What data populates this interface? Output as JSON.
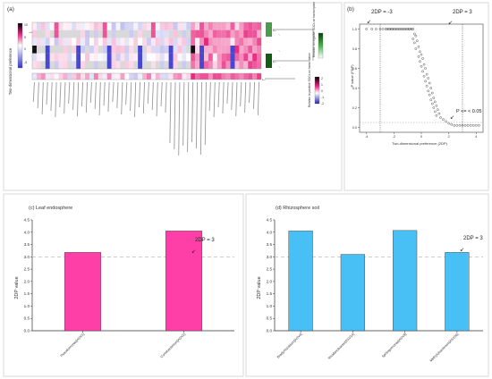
{
  "colors": {
    "pink_bar": "#ff3fa8",
    "blue_bar": "#49c0f5",
    "refline": "#b0b0b0",
    "scatter": "#555555",
    "heat_pos": "#e8287f",
    "heat_neg": "#3333cc",
    "green": "#3a8a3a"
  },
  "panel_a": {
    "label": "(a)",
    "y_axis_label": "Two-dimensional preference",
    "colorbar_ticks": [
      "10",
      "5",
      "0",
      "-5"
    ],
    "right_legend_label": "Relative to negative SOCs on transcription",
    "bottom_legend_label": "Relative to positive SOCs on transcription",
    "bottom_ticks": [
      "2",
      "1",
      "0",
      "-1",
      "-2"
    ]
  },
  "panel_b": {
    "label": "(b)",
    "ylabel": "P value (FDP)",
    "xlabel": "Two-dimensional preference (2DP)",
    "annotations": [
      "2DP = -3",
      "2DP = 3",
      "P <= < 0.05"
    ]
  },
  "chart_data": [
    {
      "type": "scatter",
      "panel": "b",
      "xlabel": "Two-dimensional preference (2DP)",
      "ylabel": "P value (FDP)",
      "xlim": [
        -4.5,
        4.5
      ],
      "ylim": [
        -0.05,
        1.05
      ],
      "xticks": [
        "-4",
        "-2",
        "0",
        "2",
        "4"
      ],
      "yticks": [
        "0.0",
        "0.2",
        "0.4",
        "0.6",
        "0.8",
        "1.0"
      ],
      "reference_x": [
        -3,
        3
      ],
      "points": [
        [
          -4.0,
          1.0
        ],
        [
          -3.6,
          1.0
        ],
        [
          -3.3,
          1.0
        ],
        [
          -3.0,
          1.0
        ],
        [
          -2.8,
          1.0
        ],
        [
          -2.6,
          1.0
        ],
        [
          -2.5,
          1.0
        ],
        [
          -2.4,
          1.0
        ],
        [
          -2.3,
          1.0
        ],
        [
          -2.2,
          1.0
        ],
        [
          -2.1,
          1.0
        ],
        [
          -2.0,
          1.0
        ],
        [
          -1.9,
          1.0
        ],
        [
          -1.8,
          1.0
        ],
        [
          -1.7,
          1.0
        ],
        [
          -1.6,
          1.0
        ],
        [
          -1.5,
          1.0
        ],
        [
          -1.4,
          1.0
        ],
        [
          -1.3,
          1.0
        ],
        [
          -1.2,
          1.0
        ],
        [
          -1.1,
          1.0
        ],
        [
          -1.0,
          1.0
        ],
        [
          -0.9,
          1.0
        ],
        [
          -0.8,
          1.0
        ],
        [
          -0.7,
          1.0
        ],
        [
          -0.6,
          1.0
        ],
        [
          -0.5,
          0.95
        ],
        [
          -0.4,
          0.93
        ],
        [
          -0.6,
          0.9
        ],
        [
          -0.3,
          0.88
        ],
        [
          -0.5,
          0.86
        ],
        [
          -0.2,
          0.82
        ],
        [
          -0.4,
          0.8
        ],
        [
          -0.1,
          0.77
        ],
        [
          0.0,
          0.74
        ],
        [
          -0.2,
          0.72
        ],
        [
          0.1,
          0.7
        ],
        [
          -0.1,
          0.67
        ],
        [
          0.2,
          0.64
        ],
        [
          0.0,
          0.62
        ],
        [
          0.3,
          0.6
        ],
        [
          0.1,
          0.57
        ],
        [
          0.4,
          0.54
        ],
        [
          0.2,
          0.52
        ],
        [
          0.5,
          0.5
        ],
        [
          0.3,
          0.47
        ],
        [
          0.6,
          0.45
        ],
        [
          0.4,
          0.42
        ],
        [
          0.7,
          0.4
        ],
        [
          0.5,
          0.37
        ],
        [
          0.8,
          0.35
        ],
        [
          0.6,
          0.33
        ],
        [
          0.9,
          0.3
        ],
        [
          0.7,
          0.28
        ],
        [
          1.0,
          0.26
        ],
        [
          0.8,
          0.24
        ],
        [
          1.1,
          0.22
        ],
        [
          0.9,
          0.2
        ],
        [
          1.2,
          0.18
        ],
        [
          1.0,
          0.16
        ],
        [
          1.3,
          0.14
        ],
        [
          1.1,
          0.12
        ],
        [
          1.4,
          0.1
        ],
        [
          1.6,
          0.08
        ],
        [
          1.8,
          0.06
        ],
        [
          2.0,
          0.04
        ],
        [
          2.2,
          0.03
        ],
        [
          2.4,
          0.02
        ],
        [
          2.6,
          0.02
        ],
        [
          2.8,
          0.02
        ],
        [
          3.0,
          0.02
        ],
        [
          3.2,
          0.02
        ],
        [
          3.4,
          0.02
        ],
        [
          3.6,
          0.02
        ],
        [
          3.8,
          0.02
        ],
        [
          4.0,
          0.02
        ],
        [
          4.2,
          0.02
        ]
      ]
    },
    {
      "type": "bar",
      "panel": "c",
      "title": "(c) Leaf endosphere",
      "ylabel": "2DP value",
      "categories": [
        "Pseudomonas[ASV1]",
        "Curtobacterium[ASV2]"
      ],
      "values": [
        3.18,
        4.05
      ],
      "ylim": [
        0.0,
        4.5
      ],
      "yticks": [
        "0.0",
        "0.5",
        "1.0",
        "1.5",
        "2.0",
        "2.5",
        "3.0",
        "3.5",
        "4.0",
        "4.5"
      ],
      "reference_y": 3.0,
      "annotation": "2DP = 3"
    },
    {
      "type": "bar",
      "panel": "d",
      "title": "(d) Rhizosphere soil",
      "ylabel": "2DP value",
      "categories": [
        "Bradyrhizobium[ASV4]",
        "Rhodanobacter[ASV14]",
        "Sphingomonas[ASV9]",
        "Methylobacterium[ASV36]"
      ],
      "values": [
        4.05,
        3.1,
        4.07,
        3.18
      ],
      "ylim": [
        0.0,
        4.5
      ],
      "yticks": [
        "0.0",
        "0.5",
        "1.0",
        "1.5",
        "2.0",
        "2.5",
        "3.0",
        "3.5",
        "4.0",
        "4.5"
      ],
      "reference_y": 3.0,
      "annotation": "2DP = 3"
    }
  ]
}
